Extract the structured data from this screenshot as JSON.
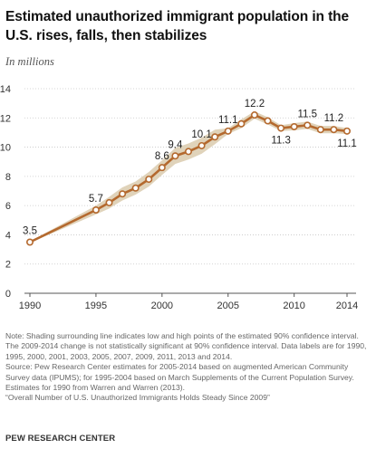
{
  "title": "Estimated unauthorized immigrant population in the U.S. rises, falls, then stabilizes",
  "subtitle": "In millions",
  "chart_data": {
    "type": "line",
    "title": "Estimated unauthorized immigrant population in the U.S. rises, falls, then stabilizes",
    "ylabel": "In millions",
    "xlabel": "",
    "xlim": [
      1990,
      2014
    ],
    "ylim": [
      0,
      14
    ],
    "x_ticks": [
      "1990",
      "1995",
      "2000",
      "2005",
      "2010",
      "2014"
    ],
    "y_ticks": [
      "0",
      "2",
      "4",
      "6",
      "8",
      "10",
      "12",
      "14"
    ],
    "grid": "horizontal dotted",
    "series": [
      {
        "x": [
          1990,
          1995,
          1996,
          1997,
          1998,
          1999,
          2000,
          2001,
          2002,
          2003,
          2004,
          2005,
          2006,
          2007,
          2008,
          2009,
          2010,
          2011,
          2012,
          2013,
          2014
        ],
        "values": [
          3.5,
          5.7,
          6.2,
          6.8,
          7.2,
          7.8,
          8.6,
          9.4,
          9.7,
          10.1,
          10.7,
          11.1,
          11.6,
          12.2,
          11.8,
          11.3,
          11.4,
          11.5,
          11.2,
          11.2,
          11.1
        ],
        "ci_low": [
          3.45,
          5.4,
          5.8,
          6.35,
          6.75,
          7.3,
          8.1,
          8.85,
          9.15,
          9.55,
          10.2,
          10.9,
          11.3,
          11.95,
          11.55,
          11.1,
          11.15,
          11.25,
          10.95,
          10.95,
          10.9
        ],
        "ci_high": [
          3.55,
          6.0,
          6.6,
          7.25,
          7.65,
          8.3,
          9.1,
          9.95,
          10.25,
          10.65,
          11.2,
          11.3,
          11.9,
          12.45,
          12.05,
          11.5,
          11.65,
          11.75,
          11.45,
          11.45,
          11.3
        ]
      }
    ],
    "data_labels": [
      {
        "x": 1990,
        "text": "3.5",
        "pos": "above"
      },
      {
        "x": 1995,
        "text": "5.7",
        "pos": "above"
      },
      {
        "x": 2000,
        "text": "8.6",
        "pos": "above"
      },
      {
        "x": 2001,
        "text": "9.4",
        "pos": "above"
      },
      {
        "x": 2003,
        "text": "10.1",
        "pos": "above"
      },
      {
        "x": 2005,
        "text": "11.1",
        "pos": "above"
      },
      {
        "x": 2007,
        "text": "12.2",
        "pos": "above"
      },
      {
        "x": 2009,
        "text": "11.3",
        "pos": "below"
      },
      {
        "x": 2011,
        "text": "11.5",
        "pos": "above"
      },
      {
        "x": 2013,
        "text": "11.2",
        "pos": "above"
      },
      {
        "x": 2014,
        "text": "11.1",
        "pos": "below"
      }
    ],
    "colors": {
      "line": "#b4692e",
      "band": "#e0d3ba",
      "marker_fill": "#ffffff",
      "grid": "#c8c8c8"
    }
  },
  "note": "Note: Shading surrounding line indicates low and high points of the estimated 90% confidence interval. The 2009-2014 change is not statistically significant at 90% confidence interval. Data labels are for 1990, 1995, 2000, 2001, 2003, 2005, 2007, 2009, 2011, 2013 and 2014.",
  "source": "Source: Pew Research Center estimates for 2005-2014 based on augmented American Community Survey data (IPUMS); for 1995-2004 based on March Supplements of the Current Population Survey. Estimates for 1990 from Warren and Warren (2013).",
  "report": "“Overall Number of U.S. Unauthorized Immigrants Holds Steady Since 2009”",
  "brand": "PEW RESEARCH CENTER"
}
